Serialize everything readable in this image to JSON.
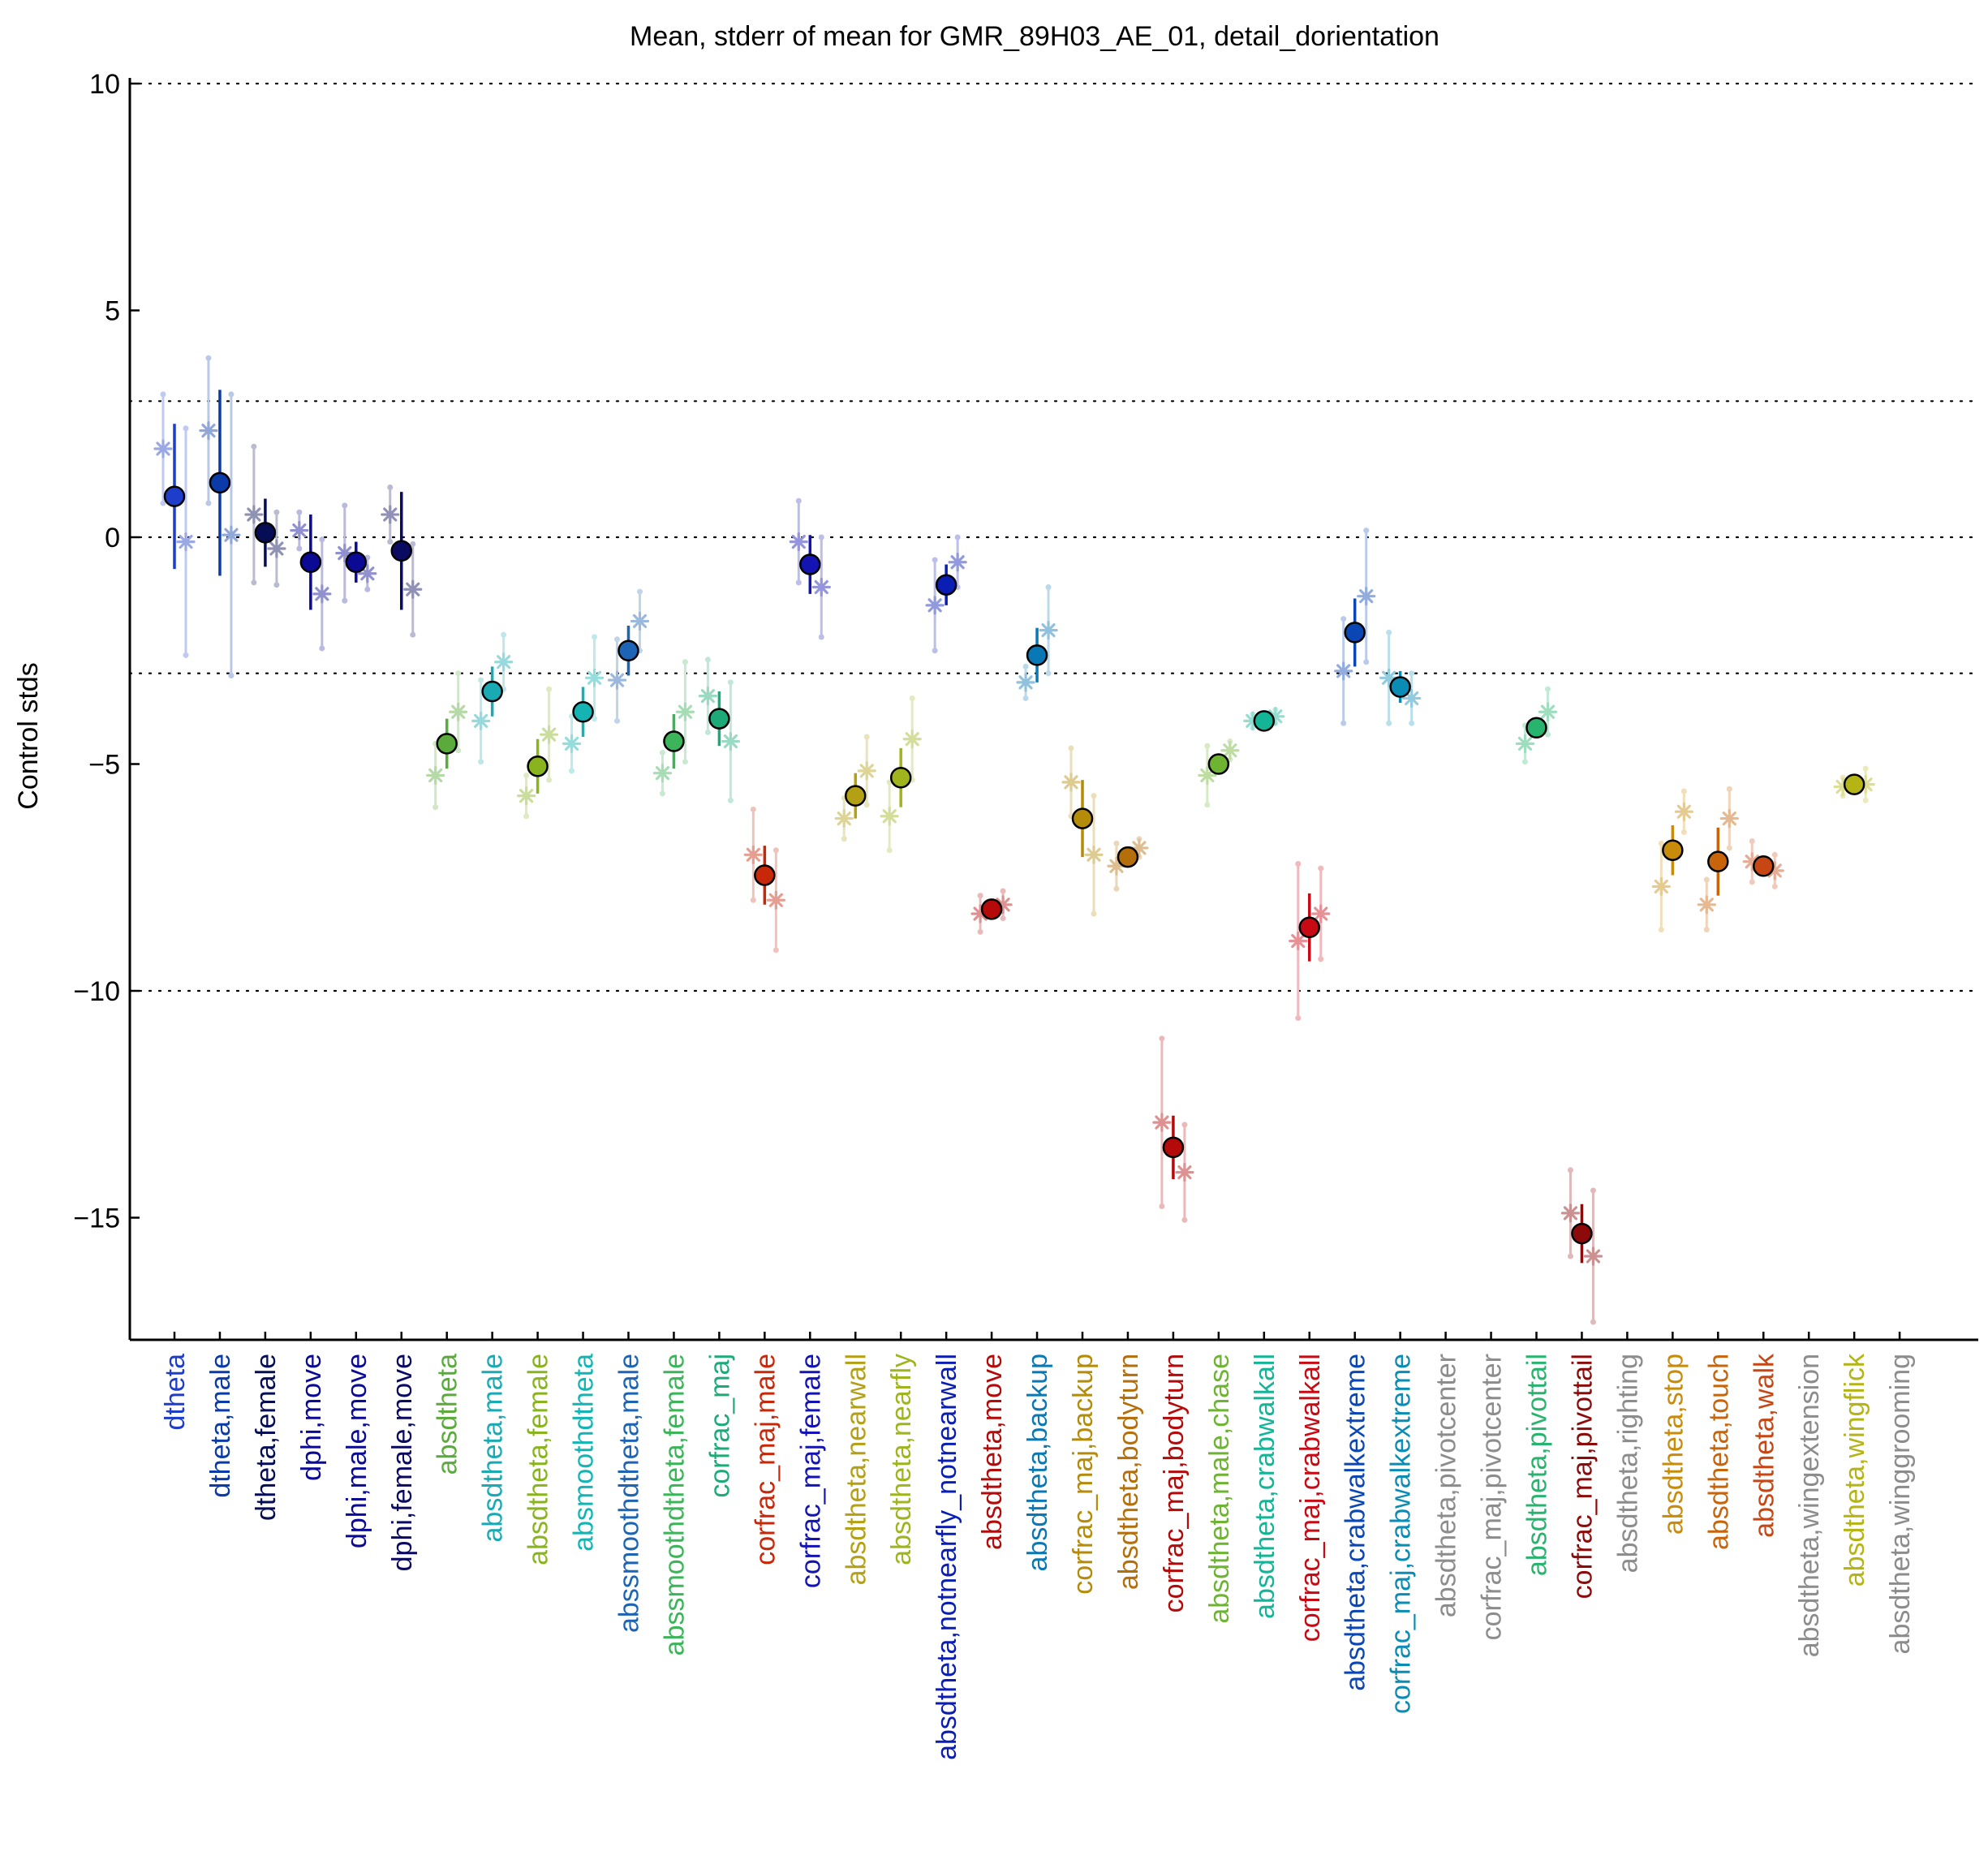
{
  "chart_data": {
    "type": "scatter",
    "title": "Mean, stderr of mean for GMR_89H03_AE_01, detail_dorientation",
    "ylabel": "Control stds",
    "xlabel": "",
    "ylim": [
      -17.5,
      10.3
    ],
    "yticks": [
      10,
      5,
      0,
      -5,
      -10,
      -15
    ],
    "ytick_labels": [
      "10",
      "5",
      "0",
      "−5",
      "−10",
      "−15"
    ],
    "gridlines_y": [
      10,
      3,
      0,
      -3,
      -10
    ],
    "grid": "dotted horizontal",
    "categories": [
      {
        "label": "dtheta",
        "color": "#1e3dc8",
        "mean": 0.9,
        "err": 1.6,
        "male": 1.95,
        "male_err": 1.2,
        "female": -0.1,
        "female_err": 2.5
      },
      {
        "label": "dtheta,male",
        "color": "#0a3ba8",
        "mean": 1.2,
        "err": 2.05,
        "male": 2.35,
        "male_err": 1.6,
        "female": 0.05,
        "female_err": 3.1
      },
      {
        "label": "dtheta,female",
        "color": "#050d55",
        "mean": 0.1,
        "err": 0.75,
        "male": 0.5,
        "male_err": 1.5,
        "female": -0.25,
        "female_err": 0.8
      },
      {
        "label": "dphi,move",
        "color": "#0a0a95",
        "mean": -0.55,
        "err": 1.05,
        "male": 0.15,
        "male_err": 0.4,
        "female": -1.25,
        "female_err": 1.2
      },
      {
        "label": "dphi,male,move",
        "color": "#0a0a95",
        "mean": -0.55,
        "err": 0.45,
        "male": -0.35,
        "male_err": 1.05,
        "female": -0.8,
        "female_err": 0.35
      },
      {
        "label": "dphi,female,move",
        "color": "#0a0a60",
        "mean": -0.3,
        "err": 1.3,
        "male": 0.5,
        "male_err": 0.6,
        "female": -1.15,
        "female_err": 1.0
      },
      {
        "label": "absdtheta",
        "color": "#5aaa3c",
        "mean": -4.55,
        "err": 0.55,
        "male": -5.25,
        "male_err": 0.7,
        "female": -3.85,
        "female_err": 0.85
      },
      {
        "label": "absdtheta,male",
        "color": "#1aaab4",
        "mean": -3.4,
        "err": 0.55,
        "male": -4.05,
        "male_err": 0.9,
        "female": -2.75,
        "female_err": 0.6
      },
      {
        "label": "absdtheta,female",
        "color": "#8ab41e",
        "mean": -5.05,
        "err": 0.6,
        "male": -5.7,
        "male_err": 0.45,
        "female": -4.35,
        "female_err": 1.0
      },
      {
        "label": "absmoothdtheta",
        "color": "#14b4b4",
        "mean": -3.85,
        "err": 0.55,
        "male": -4.55,
        "male_err": 0.6,
        "female": -3.1,
        "female_err": 0.9
      },
      {
        "label": "abssmoothdtheta,male",
        "color": "#1e64b4",
        "mean": -2.5,
        "err": 0.55,
        "male": -3.15,
        "male_err": 0.9,
        "female": -1.85,
        "female_err": 0.65
      },
      {
        "label": "abssmoothdtheta,female",
        "color": "#3cb45a",
        "mean": -4.5,
        "err": 0.6,
        "male": -5.2,
        "male_err": 0.45,
        "female": -3.85,
        "female_err": 1.1
      },
      {
        "label": "corfrac_maj",
        "color": "#1eaa78",
        "mean": -4.0,
        "err": 0.6,
        "male": -3.5,
        "male_err": 0.8,
        "female": -4.5,
        "female_err": 1.3
      },
      {
        "label": "corfrac_maj,male",
        "color": "#c8280a",
        "mean": -7.45,
        "err": 0.65,
        "male": -7.0,
        "male_err": 1.0,
        "female": -8.0,
        "female_err": 1.1
      },
      {
        "label": "corfrac_maj,female",
        "color": "#1414b4",
        "mean": -0.6,
        "err": 0.65,
        "male": -0.1,
        "male_err": 0.9,
        "female": -1.1,
        "female_err": 1.1
      },
      {
        "label": "absdtheta,nearwall",
        "color": "#b4a014",
        "mean": -5.7,
        "err": 0.5,
        "male": -6.2,
        "male_err": 0.45,
        "female": -5.15,
        "female_err": 0.75
      },
      {
        "label": "absdtheta,nearfly",
        "color": "#a0b41e",
        "mean": -5.3,
        "err": 0.65,
        "male": -6.15,
        "male_err": 0.75,
        "female": -4.45,
        "female_err": 0.9
      },
      {
        "label": "absdtheta,notnearfly_notnearwall",
        "color": "#0a1eb4",
        "mean": -1.05,
        "err": 0.45,
        "male": -1.5,
        "male_err": 1.0,
        "female": -0.55,
        "female_err": 0.55
      },
      {
        "label": "absdtheta,move",
        "color": "#b40a0a",
        "mean": -8.2,
        "err": 0.2,
        "male": -8.3,
        "male_err": 0.4,
        "female": -8.1,
        "female_err": 0.3
      },
      {
        "label": "absdtheta,backup",
        "color": "#0a78b4",
        "mean": -2.6,
        "err": 0.6,
        "male": -3.2,
        "male_err": 0.35,
        "female": -2.05,
        "female_err": 0.95
      },
      {
        "label": "corfrac_maj,backup",
        "color": "#b48c0a",
        "mean": -6.2,
        "err": 0.85,
        "male": -5.4,
        "male_err": 0.75,
        "female": -7.0,
        "female_err": 1.3
      },
      {
        "label": "absdtheta,bodyturn",
        "color": "#b46e0a",
        "mean": -7.05,
        "err": 0.2,
        "male": -7.25,
        "male_err": 0.5,
        "female": -6.85,
        "female_err": 0.2
      },
      {
        "label": "corfrac_maj,bodyturn",
        "color": "#b40a0a",
        "mean": -13.45,
        "err": 0.7,
        "male": -12.9,
        "male_err": 1.85,
        "female": -14.0,
        "female_err": 1.05
      },
      {
        "label": "absdtheta,male,chase",
        "color": "#6eb432",
        "mean": -5.0,
        "err": 0.15,
        "male": -5.25,
        "male_err": 0.65,
        "female": -4.7,
        "female_err": 0.2
      },
      {
        "label": "absdtheta,crabwalkall",
        "color": "#14b496",
        "mean": -4.05,
        "err": 0.1,
        "male": -4.05,
        "male_err": 0.15,
        "female": -3.95,
        "female_err": 0.15
      },
      {
        "label": "corfrac_maj,crabwalkall",
        "color": "#c80a14",
        "mean": -8.6,
        "err": 0.75,
        "male": -8.9,
        "male_err": 1.7,
        "female": -8.3,
        "female_err": 1.0
      },
      {
        "label": "absdtheta,crabwalkextreme",
        "color": "#0a46b4",
        "mean": -2.1,
        "err": 0.75,
        "male": -2.95,
        "male_err": 1.15,
        "female": -1.3,
        "female_err": 1.45
      },
      {
        "label": "corfrac_maj,crabwalkextreme",
        "color": "#0a8cb4",
        "mean": -3.3,
        "err": 0.35,
        "male": -3.1,
        "male_err": 1.0,
        "female": -3.55,
        "female_err": 0.55
      },
      {
        "label": "absdtheta,pivotcenter",
        "color": "#8c8c8c"
      },
      {
        "label": "corfrac_maj,pivotcenter",
        "color": "#8c8c8c"
      },
      {
        "label": "absdtheta,pivottail",
        "color": "#28b46e",
        "mean": -4.2,
        "err": 0.2,
        "male": -4.55,
        "male_err": 0.4,
        "female": -3.85,
        "female_err": 0.5
      },
      {
        "label": "corfrac_maj,pivottail",
        "color": "#8c0a0a",
        "mean": -15.35,
        "err": 0.65,
        "male": -14.9,
        "male_err": 0.95,
        "female": -15.85,
        "female_err": 1.45
      },
      {
        "label": "absdtheta,righting",
        "color": "#8c8c8c"
      },
      {
        "label": "absdtheta,stop",
        "color": "#c88c0a",
        "mean": -6.9,
        "err": 0.55,
        "male": -7.7,
        "male_err": 0.95,
        "female": -6.05,
        "female_err": 0.45
      },
      {
        "label": "absdtheta,touch",
        "color": "#c8640a",
        "mean": -7.15,
        "err": 0.75,
        "male": -8.1,
        "male_err": 0.55,
        "female": -6.2,
        "female_err": 0.65
      },
      {
        "label": "absdtheta,walk",
        "color": "#c84614",
        "mean": -7.25,
        "err": 0.1,
        "male": -7.15,
        "male_err": 0.45,
        "female": -7.35,
        "female_err": 0.35
      },
      {
        "label": "absdtheta,wingextension",
        "color": "#8c8c8c"
      },
      {
        "label": "absdtheta,wingflick",
        "color": "#b4b414",
        "mean": -5.45,
        "err": 0.1,
        "male": -5.5,
        "male_err": 0.2,
        "female": -5.45,
        "female_err": 0.35
      },
      {
        "label": "absdtheta,winggrooming",
        "color": "#8c8c8c"
      }
    ]
  }
}
